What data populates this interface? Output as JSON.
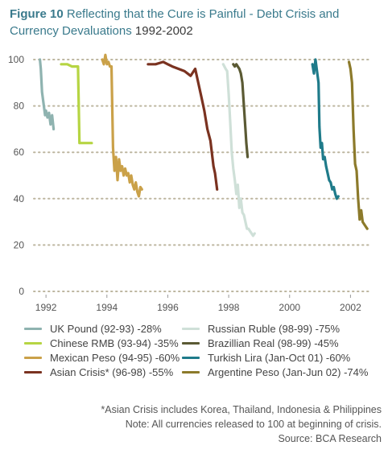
{
  "title": {
    "figure_label": "Figure 10",
    "text": "Reflecting that the Cure is Painful - Debt Crisis and Currency Devaluations",
    "years": "1992-2002"
  },
  "notes": {
    "line1": "*Asian Crisis includes Korea, Thailand, Indonesia & Philippines",
    "line2": "Note: All currencies released to 100 at beginning of crisis.",
    "line3": "Source: BCA Research"
  },
  "chart_data": {
    "type": "line",
    "title": "Reflecting that the Cure is Painful - Debt Crisis and Currency Devaluations 1992-2002",
    "xlabel": "",
    "ylabel": "",
    "xlim": [
      1991.6,
      2002.65
    ],
    "ylim": [
      0,
      100
    ],
    "x_ticks": [
      1992,
      1994,
      1996,
      1998,
      2000,
      2002
    ],
    "x_tick_labels": [
      "1992",
      "1994",
      "1996",
      "1998",
      "2000",
      "2002"
    ],
    "y_ticks": [
      0,
      20,
      40,
      60,
      80,
      100
    ],
    "y_tick_labels": [
      "0",
      "20",
      "40",
      "60",
      "80",
      "100"
    ],
    "grid": "horizontal dotted",
    "legend_position": "bottom",
    "series": [
      {
        "name": "UK Pound (92-93) -28%",
        "color": "#8fb3b0",
        "x": [
          1991.8,
          1991.83,
          1991.87,
          1991.92,
          1991.97,
          1992.0,
          1992.05,
          1992.1,
          1992.15,
          1992.2,
          1992.25
        ],
        "y": [
          100,
          96,
          86,
          81,
          76,
          78,
          75,
          77,
          72,
          76,
          70
        ]
      },
      {
        "name": "Chinese RMB (93-94) -35%",
        "color": "#b6d543",
        "x": [
          1992.5,
          1992.7,
          1992.85,
          1993.0,
          1993.05,
          1993.1,
          1993.5
        ],
        "y": [
          98,
          98,
          97,
          97,
          97,
          64,
          64
        ]
      },
      {
        "name": "Mexican Peso (94-95) -60%",
        "color": "#caa149",
        "x": [
          1993.85,
          1993.9,
          1993.95,
          1994.0,
          1994.05,
          1994.1,
          1994.15,
          1994.2,
          1994.25,
          1994.3,
          1994.35,
          1994.4,
          1994.45,
          1994.5,
          1994.55,
          1994.6,
          1994.65,
          1994.7,
          1994.75,
          1994.8,
          1994.85,
          1994.9,
          1994.95,
          1995.0,
          1995.05,
          1995.1,
          1995.15
        ],
        "y": [
          100,
          98,
          102,
          98,
          99,
          97,
          97,
          62,
          52,
          58,
          48,
          57,
          52,
          54,
          50,
          53,
          50,
          51,
          47,
          50,
          46,
          44,
          47,
          43,
          41,
          45,
          44
        ]
      },
      {
        "name": "Asian Crisis* (96-98) -55%",
        "color": "#7a3220",
        "x": [
          1995.35,
          1995.6,
          1995.85,
          1996.0,
          1996.15,
          1996.35,
          1996.55,
          1996.75,
          1996.9,
          1997.0,
          1997.1,
          1997.2,
          1997.3,
          1997.4,
          1997.5,
          1997.55,
          1997.62
        ],
        "y": [
          98,
          98,
          99,
          98,
          97,
          96,
          95,
          93,
          96,
          90,
          84,
          78,
          70,
          65,
          54,
          51,
          44
        ]
      },
      {
        "name": "Russian Ruble (98-99) -75%",
        "color": "#cfe0d8",
        "x": [
          1997.82,
          1997.9,
          1997.95,
          1998.0,
          1998.05,
          1998.1,
          1998.15,
          1998.2,
          1998.25,
          1998.3,
          1998.35,
          1998.4,
          1998.45,
          1998.5,
          1998.55,
          1998.6,
          1998.65,
          1998.7,
          1998.75,
          1998.8,
          1998.85
        ],
        "y": [
          98,
          96,
          95,
          85,
          73,
          60,
          53,
          48,
          42,
          46,
          36,
          40,
          34,
          33,
          30,
          27,
          27,
          26,
          25,
          24,
          25
        ]
      },
      {
        "name": "Brazillian Real (98-99) -45%",
        "color": "#5b5a34",
        "x": [
          1998.15,
          1998.2,
          1998.25,
          1998.3,
          1998.35,
          1998.4,
          1998.45,
          1998.5,
          1998.55,
          1998.58,
          1998.62
        ],
        "y": [
          98,
          97,
          98,
          97,
          96,
          94,
          90,
          80,
          70,
          64,
          58
        ]
      },
      {
        "name": "Turkish Lira  (Jan-Oct 01) -60%",
        "color": "#1f7b8a",
        "x": [
          2000.75,
          2000.8,
          2000.85,
          2000.9,
          2000.95,
          2000.98,
          2001.02,
          2001.06,
          2001.1,
          2001.15,
          2001.2,
          2001.25,
          2001.3,
          2001.35,
          2001.4,
          2001.45,
          2001.5,
          2001.55,
          2001.6
        ],
        "y": [
          98,
          94,
          100,
          95,
          90,
          71,
          62,
          64,
          57,
          58,
          54,
          51,
          48,
          47,
          44,
          45,
          42,
          40,
          41
        ]
      },
      {
        "name": "Argentine Peso (Jan-Jun 02) -74%",
        "color": "#8c7a2b",
        "x": [
          2001.95,
          2002.0,
          2002.05,
          2002.1,
          2002.15,
          2002.2,
          2002.25,
          2002.3,
          2002.35,
          2002.4,
          2002.45,
          2002.5,
          2002.55
        ],
        "y": [
          99,
          96,
          90,
          70,
          55,
          52,
          40,
          31,
          35,
          30,
          29,
          28,
          27
        ]
      }
    ]
  }
}
